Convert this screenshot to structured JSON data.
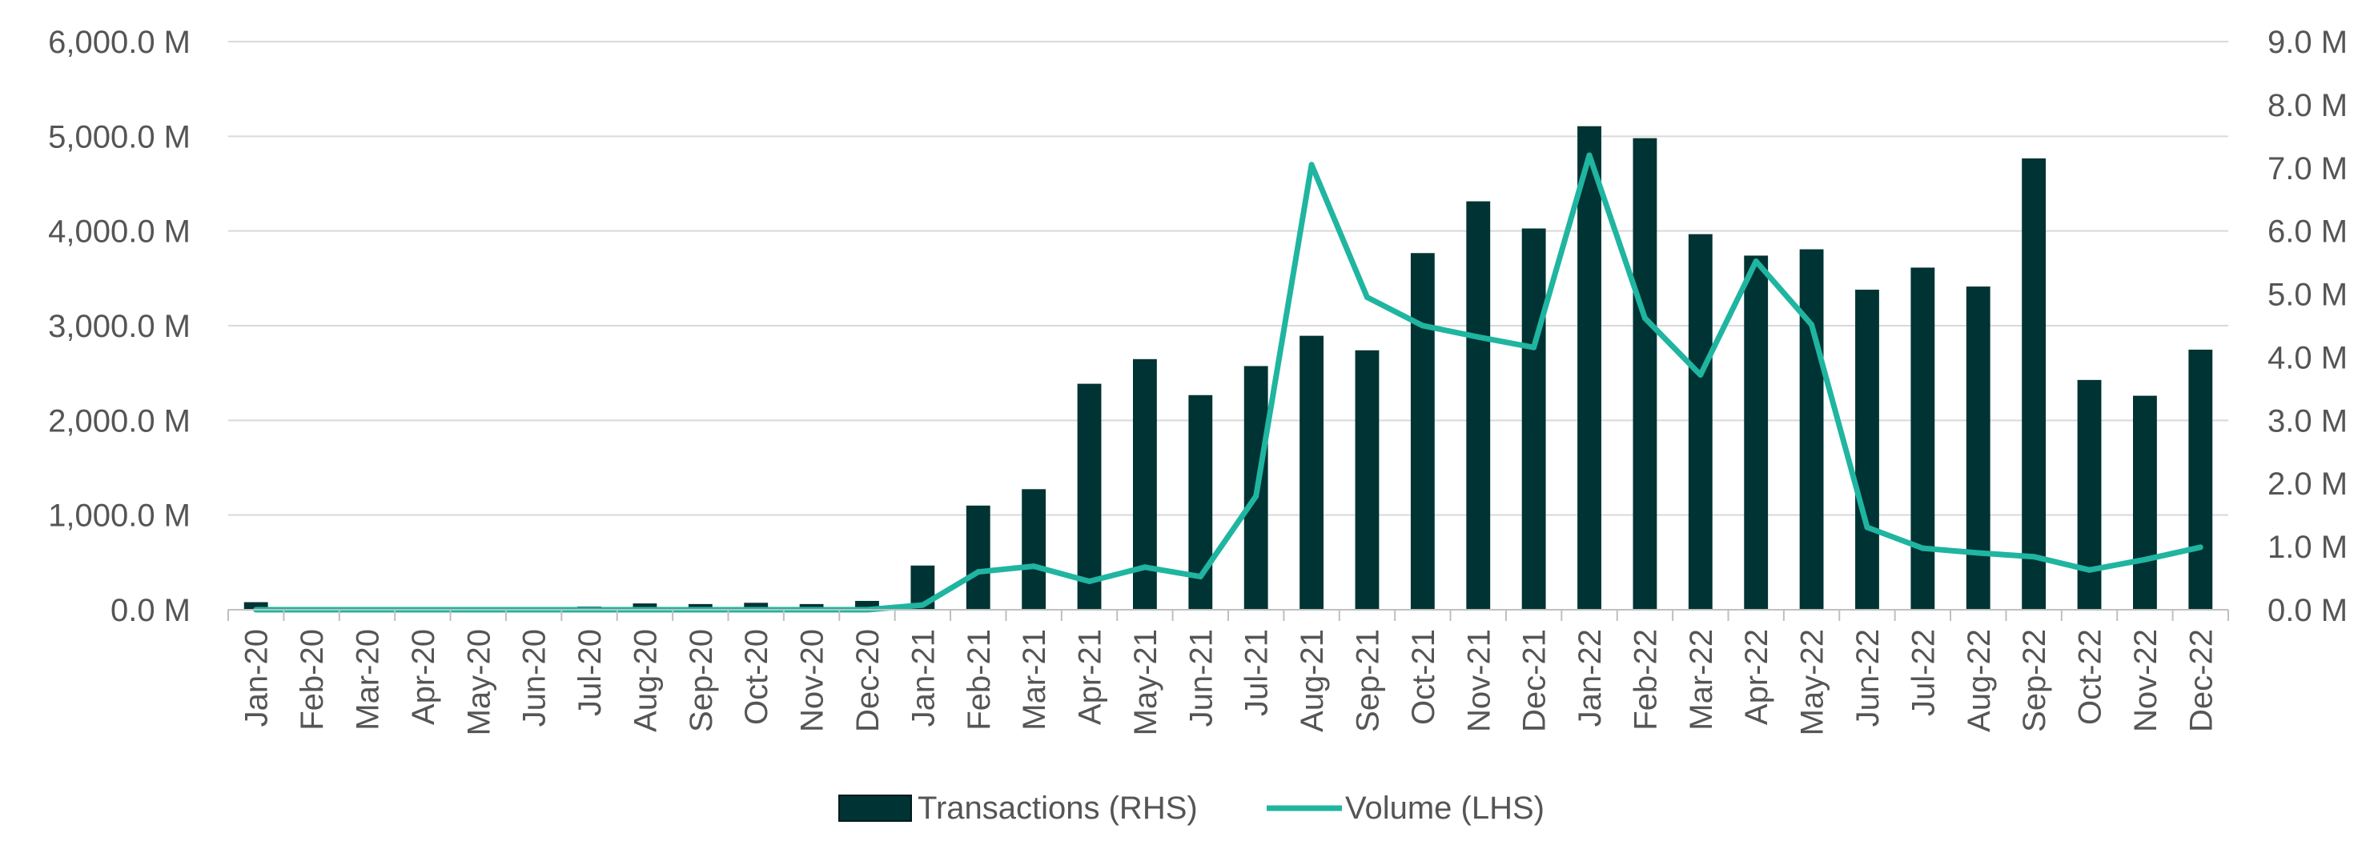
{
  "chart_data": {
    "type": "bar+line",
    "categories": [
      "Jan-20",
      "Feb-20",
      "Mar-20",
      "Apr-20",
      "May-20",
      "Jun-20",
      "Jul-20",
      "Aug-20",
      "Sep-20",
      "Oct-20",
      "Nov-20",
      "Dec-20",
      "Jan-21",
      "Feb-21",
      "Mar-21",
      "Apr-21",
      "May-21",
      "Jun-21",
      "Jul-21",
      "Aug-21",
      "Sep-21",
      "Oct-21",
      "Nov-21",
      "Dec-21",
      "Jan-22",
      "Feb-22",
      "Mar-22",
      "Apr-22",
      "May-22",
      "Jun-22",
      "Jul-22",
      "Aug-22",
      "Sep-22",
      "Oct-22",
      "Nov-22",
      "Dec-22"
    ],
    "series": [
      {
        "name": "Transactions (RHS)",
        "type": "bar",
        "axis": "right",
        "color": "#003333",
        "values": [
          0.12,
          0.0,
          0.0,
          0.0,
          0.0,
          0.0,
          0.05,
          0.1,
          0.09,
          0.11,
          0.09,
          0.14,
          0.7,
          1.65,
          1.91,
          3.58,
          3.97,
          3.4,
          3.86,
          4.34,
          4.11,
          5.65,
          6.47,
          6.04,
          7.66,
          7.47,
          5.95,
          5.61,
          5.71,
          5.07,
          5.42,
          5.12,
          7.15,
          3.64,
          3.39,
          4.12
        ]
      },
      {
        "name": "Volume (LHS)",
        "type": "line",
        "axis": "left",
        "color": "#1fb5a0",
        "values": [
          0,
          0,
          0,
          0,
          0,
          0,
          0,
          0,
          0,
          0,
          0,
          0,
          50,
          400,
          460,
          300,
          450,
          350,
          1200,
          4700,
          3300,
          3000,
          2880,
          2770,
          4800,
          3080,
          2480,
          3680,
          3010,
          870,
          650,
          600,
          560,
          420,
          530,
          660
        ]
      }
    ],
    "y_left": {
      "min": 0,
      "max": 6000,
      "ticks": [
        "6,000.0 M",
        "5,000.0 M",
        "4,000.0 M",
        "3,000.0 M",
        "2,000.0 M",
        "1,000.0 M",
        "0.0 M"
      ]
    },
    "y_right": {
      "min": 0,
      "max": 9,
      "ticks": [
        "9.0 M",
        "8.0 M",
        "7.0 M",
        "6.0 M",
        "5.0 M",
        "4.0 M",
        "3.0 M",
        "2.0 M",
        "1.0 M",
        "0.0 M"
      ]
    },
    "grid": true,
    "legend_position": "bottom",
    "legend": [
      "Transactions (RHS)",
      "Volume (LHS)"
    ]
  }
}
